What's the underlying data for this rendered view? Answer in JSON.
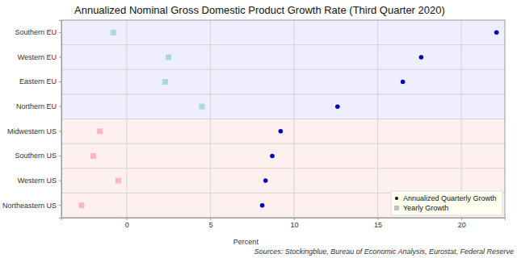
{
  "chart_data": {
    "type": "scatter",
    "orientation": "horizontal",
    "title": "Annualized Nominal Gross Domestic Product Growth Rate (Third Quarter 2020)",
    "x_label": "Percent",
    "annotation": "Sources: Stockingblue, Bureau of Economic Analysis, Eurostat, Federal Reserve",
    "categories": [
      "Southern EU",
      "Western EU",
      "Eastern EU",
      "Northern EU",
      "Midwestern US",
      "Southern US",
      "Western US",
      "Northeastern US"
    ],
    "series": [
      {
        "name": "Annualized Quarterly Growth",
        "color": "#0000b4",
        "marker": "circle",
        "values": [
          22.1,
          17.6,
          16.5,
          12.6,
          9.2,
          8.7,
          8.3,
          8.1
        ]
      },
      {
        "name": "Yearly Growth",
        "color": "#c0c0c0",
        "marker": "square",
        "colors": [
          "#a8d8e0",
          "#a8d8e0",
          "#a8d8e0",
          "#a8d8e0",
          "#ffb6c1",
          "#ffb6c1",
          "#ffb6c1",
          "#ffb6c1"
        ],
        "values": [
          -0.8,
          2.5,
          2.3,
          4.5,
          -1.6,
          -2.0,
          -0.5,
          -2.7
        ]
      }
    ],
    "xlim": [
      -3.9,
      22.6
    ],
    "xticks": [
      0,
      5,
      10,
      15,
      20
    ],
    "grid": true,
    "legend": "lower right"
  }
}
